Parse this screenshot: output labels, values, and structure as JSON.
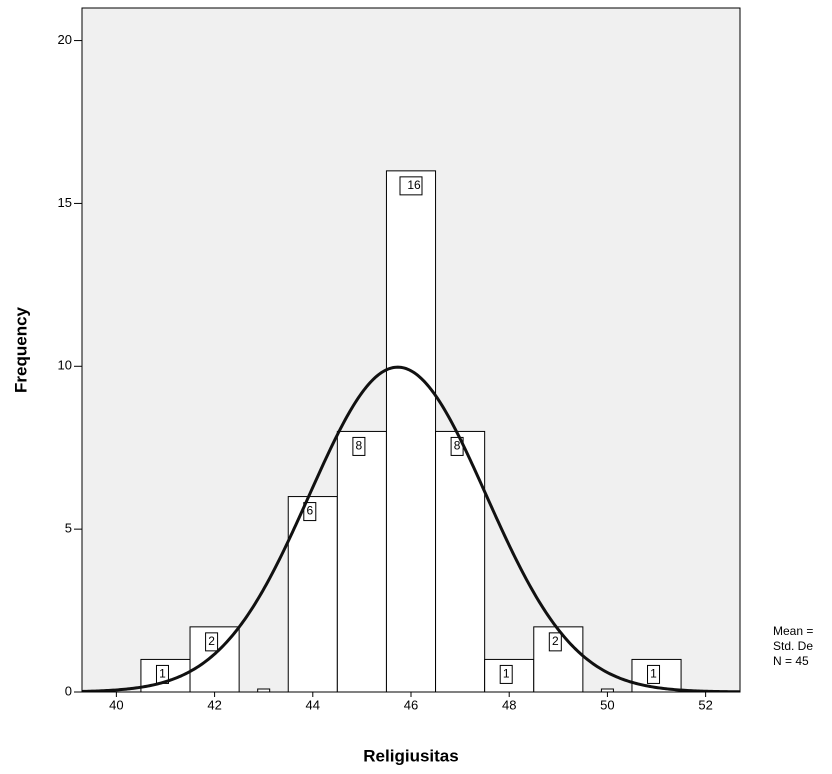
{
  "chart_data": {
    "type": "histogram",
    "x_label": "Religiusitas",
    "y_label": "Frequency",
    "bins": [
      40.5,
      41.5,
      42.5,
      43.5,
      44.5,
      45.5,
      46.5,
      47.5,
      48.5,
      49.5,
      50.5,
      51.5
    ],
    "values": [
      1,
      2,
      0,
      6,
      8,
      16,
      8,
      1,
      2,
      0,
      1
    ],
    "color": "#ffffff",
    "xlim": [
      39.3,
      52.7
    ],
    "xticks": [
      40,
      42,
      44,
      46,
      48,
      50,
      52
    ],
    "ylim": [
      0,
      21
    ],
    "yticks": [
      0,
      5,
      10,
      15,
      20
    ],
    "normal_curve": {
      "mean": 45.73,
      "std": 1.8
    },
    "stats": [
      "Mean =",
      "Std. De",
      "N = 45"
    ]
  }
}
